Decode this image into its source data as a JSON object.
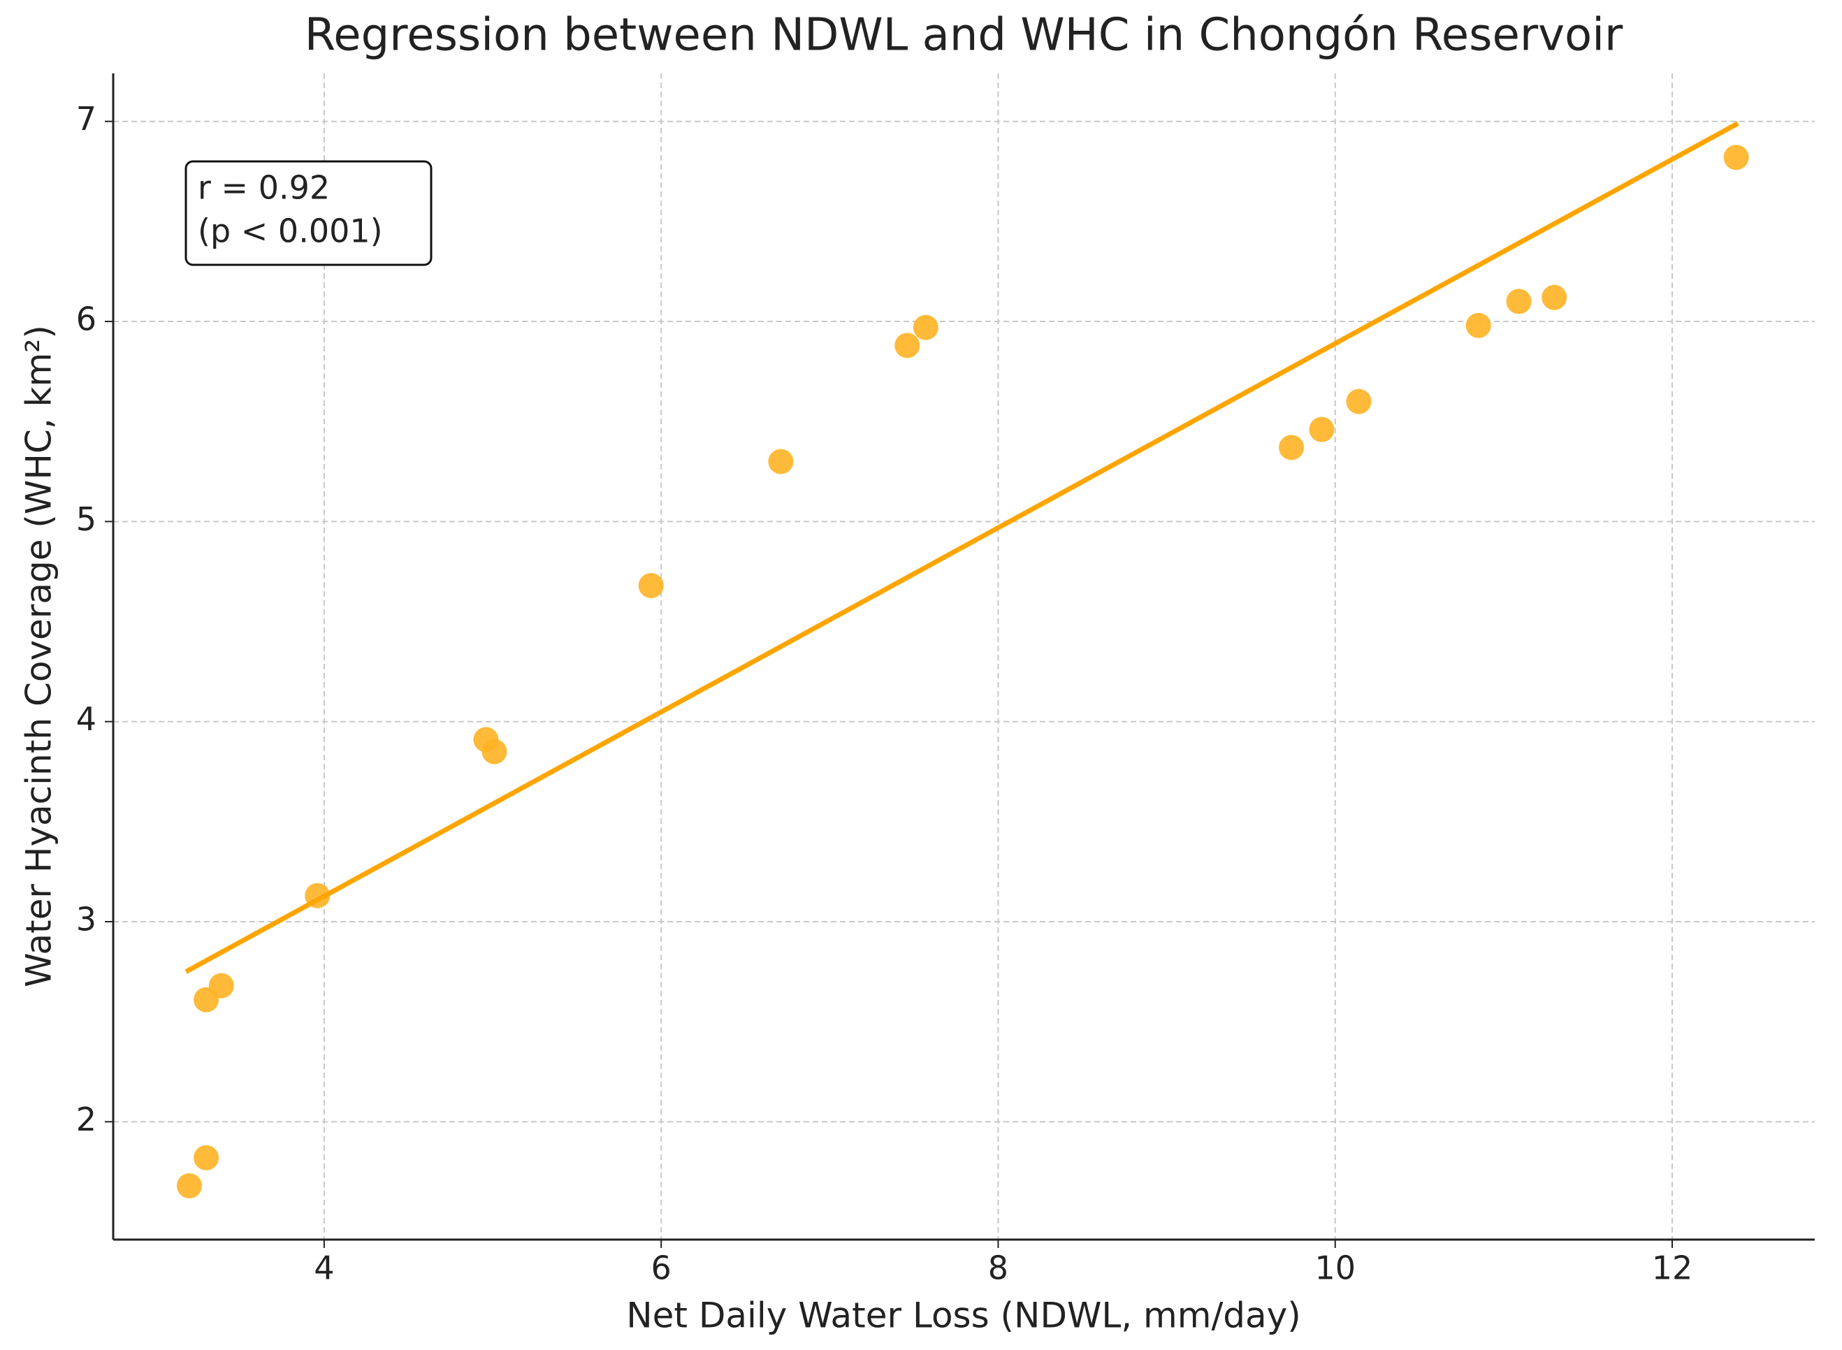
{
  "chart_data": {
    "type": "scatter",
    "title": "Regression between NDWL and WHC in Chongón Reservoir",
    "x_label": "Net Daily Water Loss (NDWL, mm/day)",
    "y_label": "Water Hyacinth Coverage (WHC, km²)",
    "annotation": [
      "r = 0.92",
      "(p < 0.001)"
    ],
    "points": {
      "color": "#ffb224",
      "x": [
        3.2,
        3.3,
        3.3,
        3.39,
        3.96,
        4.96,
        5.01,
        5.94,
        6.71,
        7.46,
        7.57,
        9.74,
        9.92,
        10.14,
        10.85,
        11.09,
        11.3,
        12.38
      ],
      "values": [
        1.68,
        1.82,
        2.61,
        2.68,
        3.13,
        3.91,
        3.85,
        4.68,
        5.3,
        5.88,
        5.97,
        5.37,
        5.46,
        5.6,
        5.98,
        6.1,
        6.12,
        6.82
      ]
    },
    "regression": {
      "color": "#ffa500",
      "x": [
        3.18,
        12.39
      ],
      "values": [
        2.75,
        6.99
      ]
    },
    "xlim": [
      2.748,
      12.846
    ],
    "ylim": [
      1.411,
      7.24
    ],
    "xticks": [
      4,
      6,
      8,
      10,
      12
    ],
    "yticks": [
      2,
      3,
      4,
      5,
      6,
      7
    ],
    "grid": true
  }
}
